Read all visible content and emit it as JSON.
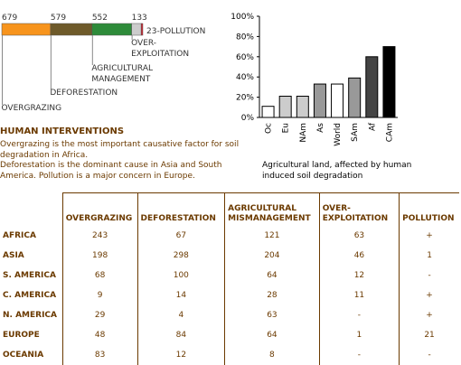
{
  "chart_data": [
    {
      "type": "stacked-hbar",
      "series": [
        {
          "name": "OVERGRAZING",
          "color": "#f7941d",
          "values": [
            679
          ]
        },
        {
          "name": "DEFORESTATION",
          "color": "#6e5a2a",
          "values": [
            579
          ]
        },
        {
          "name": "AGRICULTURAL MANAGEMENT",
          "color": "#2e8b3a",
          "values": [
            552
          ]
        },
        {
          "name": "OVER-EXPLOITATION",
          "color": "#cccccc",
          "values": [
            133
          ]
        },
        {
          "name": "23-POLLUTION",
          "color": "#d3212d",
          "values": [
            23
          ]
        }
      ]
    },
    {
      "type": "bar",
      "caption": "Agricultural land, affected by human induced soil degradation",
      "categories": [
        "Oc",
        "Eu",
        "NAm",
        "As",
        "World",
        "SAm",
        "Af",
        "CAm"
      ],
      "values": [
        11,
        21,
        21,
        33,
        33,
        39,
        60,
        70
      ],
      "colors": [
        "#ffffff",
        "#cccccc",
        "#cccccc",
        "#999999",
        "#ffffff",
        "#999999",
        "#444444",
        "#000000"
      ],
      "ylim": [
        0,
        100
      ],
      "yticks": [
        {
          "value": 0,
          "label": "0%"
        },
        {
          "value": 20,
          "label": "20%"
        },
        {
          "value": 40,
          "label": "40%"
        },
        {
          "value": 60,
          "label": "60%"
        },
        {
          "value": 80,
          "label": "80%"
        },
        {
          "value": 100,
          "label": "100%"
        }
      ]
    }
  ],
  "text": {
    "heading": "HUMAN INTERVENTIONS",
    "lines": [
      "Overgrazing is the most important causative factor for soil degradation in Africa.",
      "Deforestation is the dominant cause in Asia and South America. Pollution is a major concern in Europe."
    ]
  },
  "table": {
    "columns": [
      "OVERGRAZING",
      "DEFORESTATION",
      "AGRICULTURAL MISMANAGEMENT",
      "OVER-EXPLOITATION",
      "POLLUTION"
    ],
    "rows": [
      [
        "AFRICA",
        243,
        67,
        121,
        63,
        "+"
      ],
      [
        "ASIA",
        198,
        298,
        204,
        46,
        1
      ],
      [
        "S. AMERICA",
        68,
        100,
        64,
        12,
        "-"
      ],
      [
        "C. AMERICA",
        9,
        14,
        28,
        11,
        "+"
      ],
      [
        "N. AMERICA",
        29,
        4,
        63,
        "-",
        "+"
      ],
      [
        "EUROPE",
        48,
        84,
        64,
        1,
        21
      ],
      [
        "OCEANIA",
        83,
        12,
        8,
        "-",
        "-"
      ]
    ]
  }
}
